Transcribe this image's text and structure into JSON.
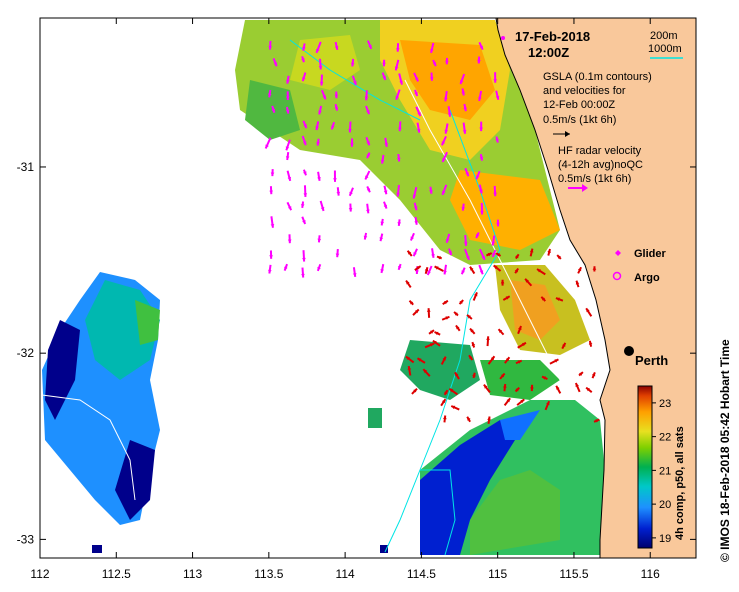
{
  "map": {
    "date": "17-Feb-2018",
    "time": "12:00Z",
    "depth_legend": {
      "shallow": "200m",
      "deep": "1000m"
    },
    "gsla_note": [
      "GSLA (0.1m contours)",
      "and velocities for",
      "12-Feb 00:00Z",
      "0.5m/s (1kt 6h)"
    ],
    "hf_note": [
      "HF radar velocity",
      "(4-12h avg)noQC",
      "0.5m/s (1kt 6h)"
    ],
    "glider_label": "Glider",
    "argo_label": "Argo",
    "city_label": "Perth",
    "colorbar": {
      "title": "4h comp, p50, all sats",
      "ticks": [
        "19",
        "20",
        "21",
        "22",
        "23"
      ]
    },
    "credit": "© IMOS 18-Feb-2018 05:42 Hobart Time",
    "x_ticks": [
      "112",
      "112.5",
      "113",
      "113.5",
      "114",
      "114.5",
      "115",
      "115.5",
      "116"
    ],
    "y_ticks": [
      "-31",
      "-32",
      "-33"
    ],
    "colors": {
      "land": "#f9c89b",
      "cool": "#00008b",
      "warm": "#ffa500",
      "hf_arrow": "#ff00ff",
      "gsla_arrow": "#dd0000",
      "contour_200m": "#ffffff",
      "contour_1000m": "#00e5e5"
    },
    "extent": {
      "lon": [
        112,
        116.3
      ],
      "lat": [
        -33.1,
        -30.2
      ]
    },
    "sst_range": [
      18.7,
      23.5
    ]
  }
}
